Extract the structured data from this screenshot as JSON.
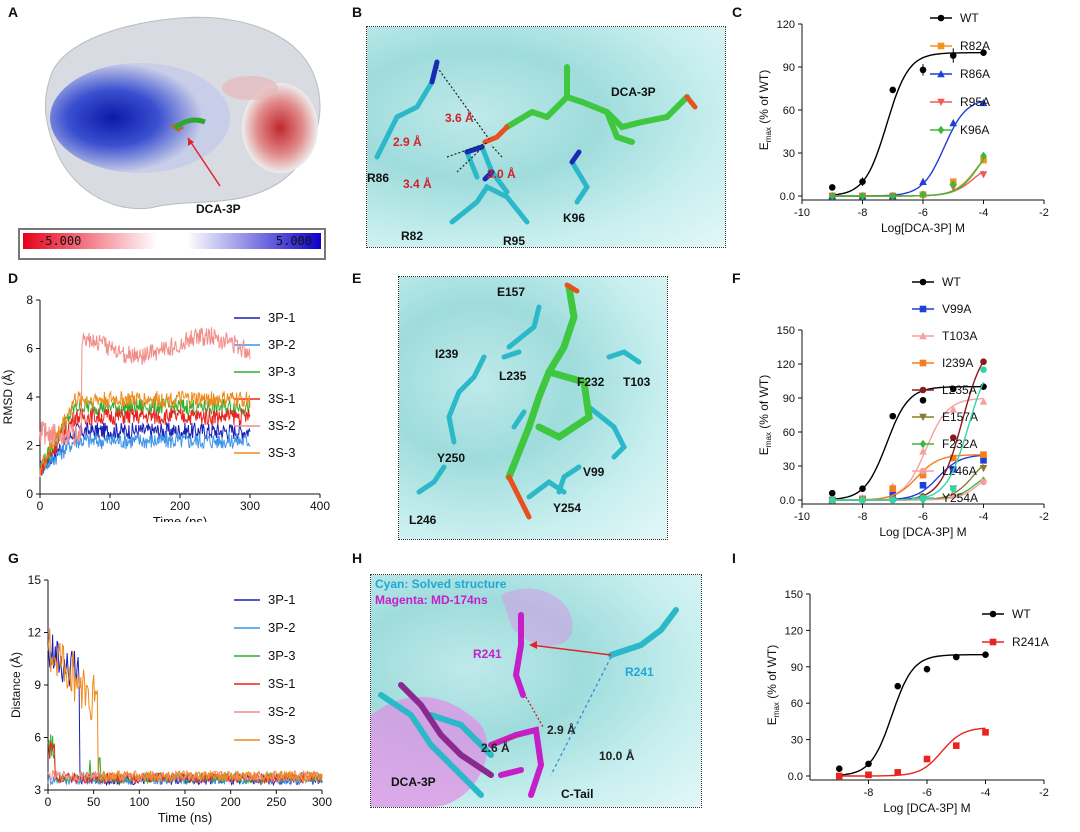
{
  "panels": {
    "A": {
      "letter": "A",
      "ligand_label": "DCA-3P",
      "colorbar": {
        "min": "-5.000",
        "max": "5.000"
      }
    },
    "B": {
      "letter": "B",
      "labels": [
        "DCA-3P",
        "R86",
        "R82",
        "R95",
        "K96"
      ],
      "distances": [
        "3.6 Å",
        "2.9 Å",
        "3.4 Å",
        "3.0 Å"
      ]
    },
    "E": {
      "letter": "E",
      "labels": [
        "E157",
        "I239",
        "L235",
        "F232",
        "T103",
        "Y250",
        "V99",
        "L246",
        "Y254"
      ]
    },
    "H": {
      "letter": "H",
      "legend_cyan": "Cyan: Solved structure",
      "legend_magenta": "Magenta: MD-174ns",
      "labels": {
        "r241_magenta": "R241",
        "r241_cyan": "R241",
        "ligand": "DCA-3P",
        "tail": "C-Tail"
      },
      "distances": [
        "2.9 Å",
        "2.6 Å",
        "10.0 Å"
      ]
    }
  },
  "chart_data": [
    {
      "panel": "C",
      "type": "line",
      "xlabel": "Log[DCA-3P] M",
      "ylabel": "E_max (% of WT)",
      "xlim": [
        -10,
        -2
      ],
      "ylim": [
        0,
        120
      ],
      "xticks": [
        -10,
        -8,
        -6,
        -4,
        -2
      ],
      "yticks": [
        0,
        30,
        60,
        90,
        120
      ],
      "series": [
        {
          "name": "WT",
          "color": "#000000",
          "marker": "circle",
          "x": [
            -9,
            -8,
            -7,
            -6,
            -5,
            -4
          ],
          "y": [
            6,
            10,
            74,
            88,
            98,
            100
          ],
          "err": [
            0,
            3,
            0,
            4,
            5,
            0
          ],
          "ec50": -7.2,
          "top": 100
        },
        {
          "name": "R82A",
          "color": "#f7941d",
          "marker": "square",
          "x": [
            -9,
            -8,
            -7,
            -6,
            -5,
            -4
          ],
          "y": [
            0,
            0,
            0,
            1,
            10,
            25
          ],
          "ec50": -4.2,
          "top": 40
        },
        {
          "name": "R86A",
          "color": "#1f3fd8",
          "marker": "triangle",
          "x": [
            -9,
            -8,
            -7,
            -6,
            -5,
            -4
          ],
          "y": [
            0,
            0,
            0,
            10,
            51,
            65
          ],
          "ec50": -5.3,
          "top": 68
        },
        {
          "name": "R95A",
          "color": "#f25a5a",
          "marker": "triangle-down",
          "x": [
            -9,
            -8,
            -7,
            -6,
            -5,
            -4
          ],
          "y": [
            0,
            0,
            0,
            0,
            6,
            15
          ],
          "ec50": -4.3,
          "top": 25
        },
        {
          "name": "K96A",
          "color": "#3db83d",
          "marker": "diamond",
          "x": [
            -9,
            -8,
            -7,
            -6,
            -5,
            -4
          ],
          "y": [
            0,
            0,
            0,
            1,
            8,
            28
          ],
          "ec50": -4.1,
          "top": 45
        }
      ]
    },
    {
      "panel": "D",
      "type": "line",
      "xlabel": "Time (ns)",
      "ylabel": "RMSD (Å)",
      "xlim": [
        0,
        400
      ],
      "ylim": [
        0,
        8
      ],
      "xticks": [
        0,
        100,
        200,
        300,
        400
      ],
      "yticks": [
        0,
        2,
        4,
        6,
        8
      ],
      "series": [
        {
          "name": "3P-1",
          "color": "#1a1fb5",
          "base": 2.6
        },
        {
          "name": "3P-2",
          "color": "#3f94e8",
          "base": 2.2
        },
        {
          "name": "3P-3",
          "color": "#2eae2e",
          "base": 3.6
        },
        {
          "name": "3S-1",
          "color": "#e8241e",
          "base": 3.2
        },
        {
          "name": "3S-2",
          "color": "#f28e8a",
          "base": 6.2
        },
        {
          "name": "3S-3",
          "color": "#f08a1c",
          "base": 3.9
        }
      ]
    },
    {
      "panel": "F",
      "type": "line",
      "xlabel": "Log [DCA-3P]  M",
      "ylabel": "E_max (% of WT)",
      "xlim": [
        -10,
        -2
      ],
      "ylim": [
        0,
        150
      ],
      "xticks": [
        -10,
        -8,
        -6,
        -4,
        -2
      ],
      "yticks": [
        0,
        30,
        60,
        90,
        120,
        150
      ],
      "series": [
        {
          "name": "WT",
          "color": "#000000",
          "marker": "circle",
          "x": [
            -9,
            -8,
            -7,
            -6,
            -5,
            -4
          ],
          "y": [
            6,
            10,
            74,
            88,
            98,
            100
          ],
          "ec50": -7.2,
          "top": 100
        },
        {
          "name": "V99A",
          "color": "#1f3fd8",
          "marker": "square",
          "x": [
            -9,
            -8,
            -7,
            -6,
            -5,
            -4
          ],
          "y": [
            0,
            1,
            6,
            13,
            27,
            35
          ],
          "ec50": -5.5,
          "top": 40
        },
        {
          "name": "T103A",
          "color": "#f7a0a0",
          "marker": "triangle",
          "x": [
            -9,
            -8,
            -7,
            -6,
            -5,
            -4
          ],
          "y": [
            0,
            2,
            12,
            43,
            80,
            87
          ],
          "ec50": -5.9,
          "top": 90
        },
        {
          "name": "I239A",
          "color": "#f57c1f",
          "marker": "square",
          "x": [
            -9,
            -8,
            -7,
            -6,
            -5,
            -4
          ],
          "y": [
            0,
            1,
            10,
            22,
            37,
            40
          ],
          "ec50": -6.2,
          "top": 40
        },
        {
          "name": "L235A",
          "color": "#8b1a1a",
          "marker": "circle",
          "x": [
            -9,
            -8,
            -7,
            -6,
            -5,
            -4
          ],
          "y": [
            0,
            0,
            0,
            3,
            55,
            122
          ],
          "ec50": -4.7,
          "top": 140
        },
        {
          "name": "E157A",
          "color": "#8a7a2e",
          "marker": "triangle-down",
          "x": [
            -9,
            -8,
            -7,
            -6,
            -5,
            -4
          ],
          "y": [
            0,
            0,
            0,
            2,
            10,
            28
          ],
          "ec50": -4.3,
          "top": 45
        },
        {
          "name": "F232A",
          "color": "#3db83d",
          "marker": "diamond",
          "x": [
            -9,
            -8,
            -7,
            -6,
            -5,
            -4
          ],
          "y": [
            0,
            0,
            0,
            0,
            5,
            17
          ],
          "ec50": -4.2,
          "top": 30
        },
        {
          "name": "L246A",
          "color": "#f5a0a0",
          "marker": "circle",
          "x": [
            -9,
            -8,
            -7,
            -6,
            -5,
            -4
          ],
          "y": [
            0,
            0,
            0,
            1,
            4,
            16
          ],
          "ec50": -4.0,
          "top": 35
        },
        {
          "name": "Y254A",
          "color": "#2fd6a8",
          "marker": "circle",
          "x": [
            -9,
            -8,
            -7,
            -6,
            -5,
            -4
          ],
          "y": [
            0,
            0,
            0,
            1,
            10,
            115
          ],
          "ec50": -4.5,
          "top": 130
        }
      ]
    },
    {
      "panel": "G",
      "type": "line",
      "xlabel": "Time (ns)",
      "ylabel": "Distance (Å)",
      "xlim": [
        0,
        300
      ],
      "ylim": [
        3,
        15
      ],
      "xticks": [
        0,
        50,
        100,
        150,
        200,
        250,
        300
      ],
      "yticks": [
        3,
        6,
        9,
        12,
        15
      ],
      "series": [
        {
          "name": "3P-1",
          "color": "#1a1fb5",
          "base": 3.6
        },
        {
          "name": "3P-2",
          "color": "#3f94e8",
          "base": 3.6
        },
        {
          "name": "3P-3",
          "color": "#2eae2e",
          "base": 3.7
        },
        {
          "name": "3S-1",
          "color": "#e8241e",
          "base": 3.7
        },
        {
          "name": "3S-2",
          "color": "#f28e8a",
          "base": 3.8
        },
        {
          "name": "3S-3",
          "color": "#f08a1c",
          "base": 3.8
        }
      ]
    },
    {
      "panel": "I",
      "type": "line",
      "xlabel": "Log [DCA-3P]  M",
      "ylabel": "E_max (% of WT)",
      "xlim": [
        -10,
        -2
      ],
      "ylim": [
        0,
        150
      ],
      "xticks": [
        -8,
        -6,
        -4,
        -2
      ],
      "yticks": [
        0,
        30,
        60,
        90,
        120,
        150
      ],
      "series": [
        {
          "name": "WT",
          "color": "#000000",
          "marker": "circle",
          "x": [
            -9,
            -8,
            -7,
            -6,
            -5,
            -4
          ],
          "y": [
            6,
            10,
            74,
            88,
            98,
            100
          ],
          "ec50": -7.2,
          "top": 100
        },
        {
          "name": "R241A",
          "color": "#e8241e",
          "marker": "square",
          "x": [
            -9,
            -8,
            -7,
            -6,
            -5,
            -4
          ],
          "y": [
            0,
            1,
            3,
            14,
            25,
            36
          ],
          "ec50": -5.5,
          "top": 40
        }
      ]
    }
  ]
}
